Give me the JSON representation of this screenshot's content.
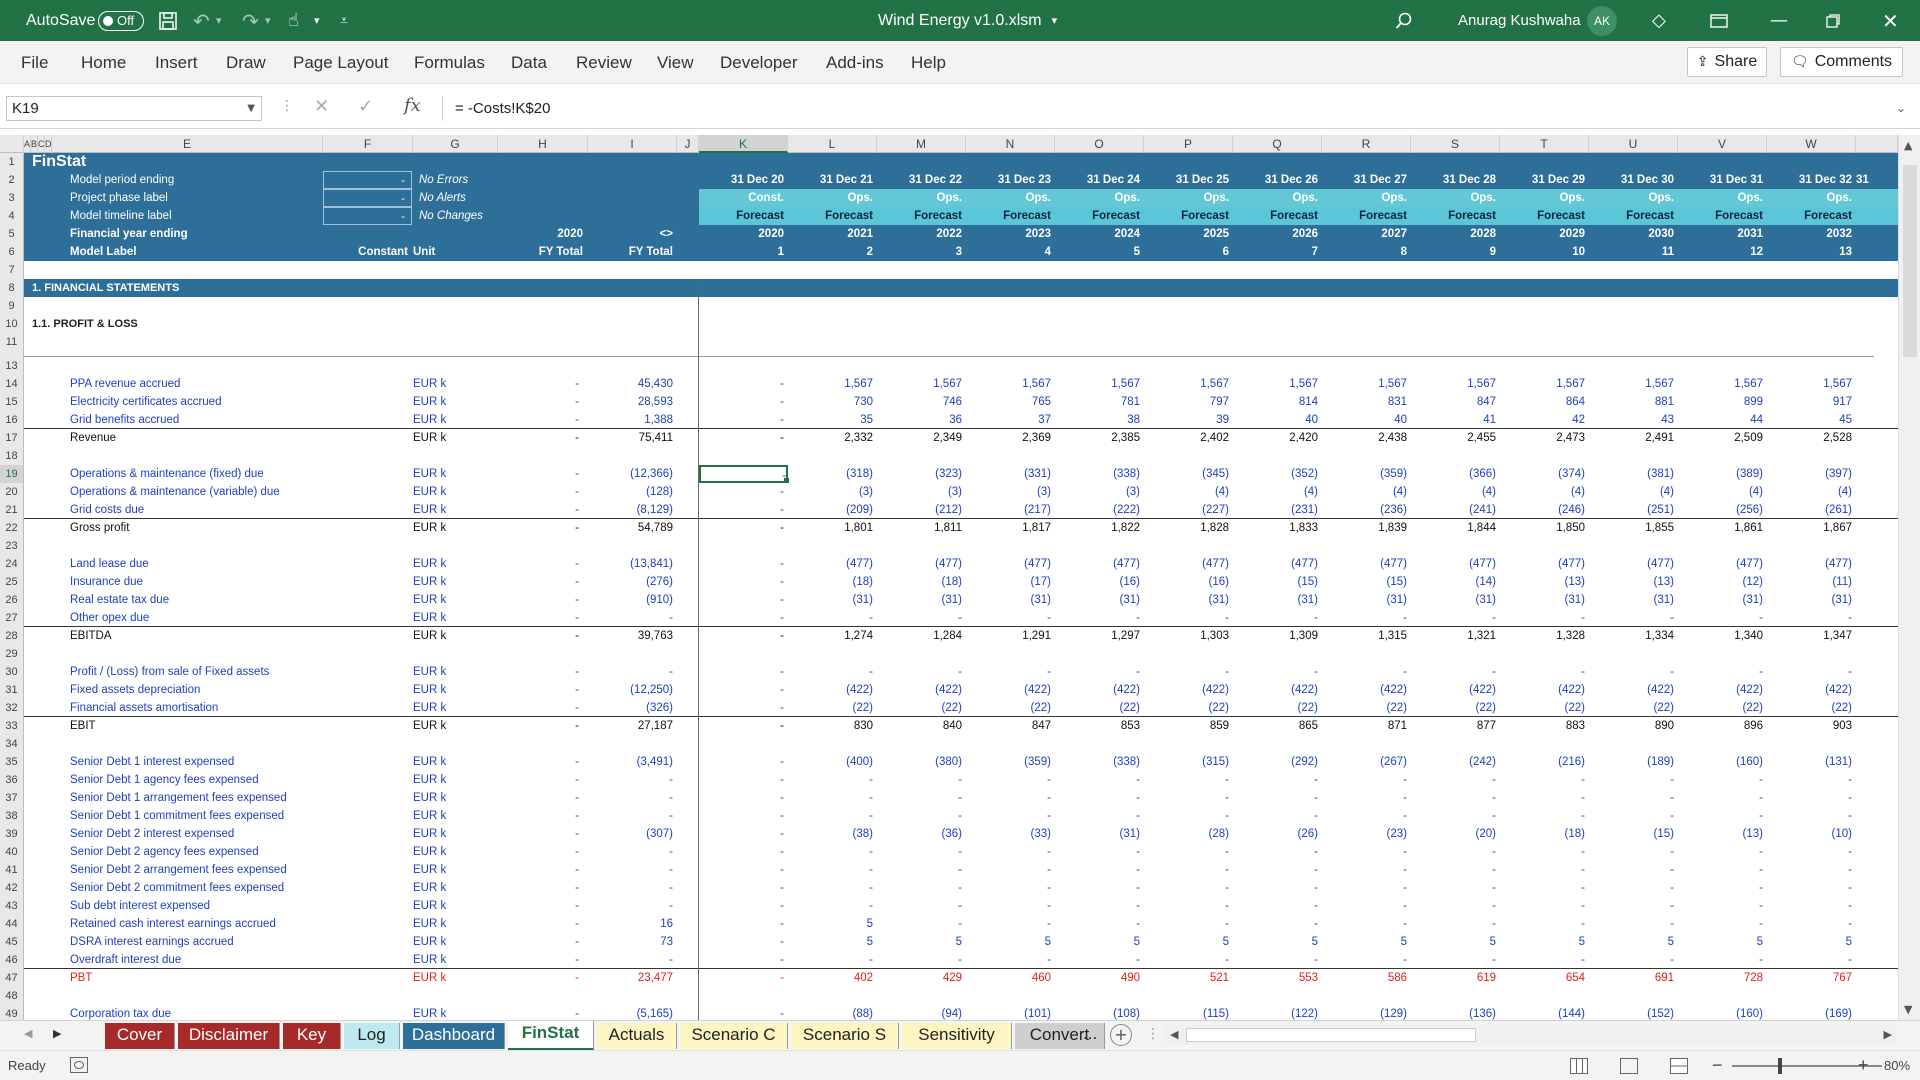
{
  "titlebar": {
    "autosave_label": "AutoSave",
    "autosave_state": "Off",
    "filename": "Wind Energy v1.0.xlsm",
    "user_name": "Anurag Kushwaha",
    "user_initials": "AK"
  },
  "ribbon": {
    "tabs": [
      "File",
      "Home",
      "Insert",
      "Draw",
      "Page Layout",
      "Formulas",
      "Data",
      "Review",
      "View",
      "Developer",
      "Add-ins",
      "Help"
    ],
    "share_label": "Share",
    "comments_label": "Comments"
  },
  "formula_bar": {
    "name_box": "K19",
    "formula": "= -Costs!K$20"
  },
  "columns": [
    "A",
    "B",
    "C",
    "D",
    "E",
    "F",
    "G",
    "H",
    "I",
    "J",
    "K",
    "L",
    "M",
    "N",
    "O",
    "P",
    "Q",
    "R",
    "S",
    "T",
    "U",
    "V",
    "W"
  ],
  "header": {
    "sheet_title": "FinStat",
    "labels": [
      "Model period ending",
      "Project phase label",
      "Model timeline label",
      "Financial year ending",
      "Model Label"
    ],
    "f_values": [
      "-",
      "-",
      "-"
    ],
    "g_values": [
      "No Errors",
      "No Alerts",
      "No Changes"
    ],
    "row5_h": "2020",
    "row5_i": "<>",
    "row6_f": "Constant",
    "row6_g": "Unit",
    "row6_h": "FY Total",
    "row6_i": "FY Total",
    "dates": [
      "31 Dec 20",
      "31 Dec 21",
      "31 Dec 22",
      "31 Dec 23",
      "31 Dec 24",
      "31 Dec 25",
      "31 Dec 26",
      "31 Dec 27",
      "31 Dec 28",
      "31 Dec 29",
      "31 Dec 30",
      "31 Dec 31",
      "31 Dec 32"
    ],
    "phases": [
      "Const.",
      "Ops.",
      "Ops.",
      "Ops.",
      "Ops.",
      "Ops.",
      "Ops.",
      "Ops.",
      "Ops.",
      "Ops.",
      "Ops.",
      "Ops.",
      "Ops."
    ],
    "timeline": [
      "Forecast",
      "Forecast",
      "Forecast",
      "Forecast",
      "Forecast",
      "Forecast",
      "Forecast",
      "Forecast",
      "Forecast",
      "Forecast",
      "Forecast",
      "Forecast",
      "Forecast"
    ],
    "years": [
      "2020",
      "2021",
      "2022",
      "2023",
      "2024",
      "2025",
      "2026",
      "2027",
      "2028",
      "2029",
      "2030",
      "2031",
      "2032"
    ],
    "labels_num": [
      "1",
      "2",
      "3",
      "4",
      "5",
      "6",
      "7",
      "8",
      "9",
      "10",
      "11",
      "12",
      "13"
    ]
  },
  "sections": {
    "s1": "1. FINANCIAL STATEMENTS",
    "s11": "1.1. PROFIT & LOSS"
  },
  "table_rows": [
    {
      "n": "14",
      "label": "PPA revenue accrued",
      "unit": "EUR k",
      "h": "-",
      "i": "45,430",
      "k": "-",
      "vals": [
        "1,567",
        "1,567",
        "1,567",
        "1,567",
        "1,567",
        "1,567",
        "1,567",
        "1,567",
        "1,567",
        "1,567",
        "1,567",
        "1,567"
      ],
      "style": "blue"
    },
    {
      "n": "15",
      "label": "Electricity certificates accrued",
      "unit": "EUR k",
      "h": "-",
      "i": "28,593",
      "k": "-",
      "vals": [
        "730",
        "746",
        "765",
        "781",
        "797",
        "814",
        "831",
        "847",
        "864",
        "881",
        "899",
        "917"
      ],
      "style": "blue"
    },
    {
      "n": "16",
      "label": "Grid benefits accrued",
      "unit": "EUR k",
      "h": "-",
      "i": "1,388",
      "k": "-",
      "vals": [
        "35",
        "36",
        "37",
        "38",
        "39",
        "40",
        "40",
        "41",
        "42",
        "43",
        "44",
        "45"
      ],
      "style": "blue"
    },
    {
      "n": "17",
      "label": "Revenue",
      "unit": "EUR k",
      "h": "-",
      "i": "75,411",
      "k": "-",
      "vals": [
        "2,332",
        "2,349",
        "2,369",
        "2,385",
        "2,402",
        "2,420",
        "2,438",
        "2,455",
        "2,473",
        "2,491",
        "2,509",
        "2,528"
      ],
      "style": "total"
    },
    {
      "n": "19",
      "label": "Operations & maintenance (fixed) due",
      "unit": "EUR k",
      "h": "-",
      "i": "(12,366)",
      "k": "-",
      "vals": [
        "(318)",
        "(323)",
        "(331)",
        "(338)",
        "(345)",
        "(352)",
        "(359)",
        "(366)",
        "(374)",
        "(381)",
        "(389)",
        "(397)"
      ],
      "style": "blue"
    },
    {
      "n": "20",
      "label": "Operations & maintenance (variable) due",
      "unit": "EUR k",
      "h": "-",
      "i": "(128)",
      "k": "-",
      "vals": [
        "(3)",
        "(3)",
        "(3)",
        "(3)",
        "(4)",
        "(4)",
        "(4)",
        "(4)",
        "(4)",
        "(4)",
        "(4)",
        "(4)"
      ],
      "style": "blue"
    },
    {
      "n": "21",
      "label": "Grid costs due",
      "unit": "EUR k",
      "h": "-",
      "i": "(8,129)",
      "k": "-",
      "vals": [
        "(209)",
        "(212)",
        "(217)",
        "(222)",
        "(227)",
        "(231)",
        "(236)",
        "(241)",
        "(246)",
        "(251)",
        "(256)",
        "(261)"
      ],
      "style": "blue"
    },
    {
      "n": "22",
      "label": "Gross profit",
      "unit": "EUR k",
      "h": "-",
      "i": "54,789",
      "k": "-",
      "vals": [
        "1,801",
        "1,811",
        "1,817",
        "1,822",
        "1,828",
        "1,833",
        "1,839",
        "1,844",
        "1,850",
        "1,855",
        "1,861",
        "1,867"
      ],
      "style": "total"
    },
    {
      "n": "24",
      "label": "Land lease due",
      "unit": "EUR k",
      "h": "-",
      "i": "(13,841)",
      "k": "-",
      "vals": [
        "(477)",
        "(477)",
        "(477)",
        "(477)",
        "(477)",
        "(477)",
        "(477)",
        "(477)",
        "(477)",
        "(477)",
        "(477)",
        "(477)"
      ],
      "style": "blue"
    },
    {
      "n": "25",
      "label": "Insurance due",
      "unit": "EUR k",
      "h": "-",
      "i": "(276)",
      "k": "-",
      "vals": [
        "(18)",
        "(18)",
        "(17)",
        "(16)",
        "(16)",
        "(15)",
        "(15)",
        "(14)",
        "(13)",
        "(13)",
        "(12)",
        "(11)"
      ],
      "style": "blue"
    },
    {
      "n": "26",
      "label": "Real estate tax due",
      "unit": "EUR k",
      "h": "-",
      "i": "(910)",
      "k": "-",
      "vals": [
        "(31)",
        "(31)",
        "(31)",
        "(31)",
        "(31)",
        "(31)",
        "(31)",
        "(31)",
        "(31)",
        "(31)",
        "(31)",
        "(31)"
      ],
      "style": "blue"
    },
    {
      "n": "27",
      "label": "Other opex due",
      "unit": "EUR k",
      "h": "-",
      "i": "-",
      "k": "-",
      "vals": [
        "-",
        "-",
        "-",
        "-",
        "-",
        "-",
        "-",
        "-",
        "-",
        "-",
        "-",
        "-"
      ],
      "style": "blue"
    },
    {
      "n": "28",
      "label": "EBITDA",
      "unit": "EUR k",
      "h": "-",
      "i": "39,763",
      "k": "-",
      "vals": [
        "1,274",
        "1,284",
        "1,291",
        "1,297",
        "1,303",
        "1,309",
        "1,315",
        "1,321",
        "1,328",
        "1,334",
        "1,340",
        "1,347"
      ],
      "style": "total"
    },
    {
      "n": "30",
      "label": "Profit / (Loss) from sale of Fixed assets",
      "unit": "EUR k",
      "h": "-",
      "i": "-",
      "k": "-",
      "vals": [
        "-",
        "-",
        "-",
        "-",
        "-",
        "-",
        "-",
        "-",
        "-",
        "-",
        "-",
        "-"
      ],
      "style": "blue"
    },
    {
      "n": "31",
      "label": "Fixed assets depreciation",
      "unit": "EUR k",
      "h": "-",
      "i": "(12,250)",
      "k": "-",
      "vals": [
        "(422)",
        "(422)",
        "(422)",
        "(422)",
        "(422)",
        "(422)",
        "(422)",
        "(422)",
        "(422)",
        "(422)",
        "(422)",
        "(422)"
      ],
      "style": "blue"
    },
    {
      "n": "32",
      "label": "Financial assets amortisation",
      "unit": "EUR k",
      "h": "-",
      "i": "(326)",
      "k": "-",
      "vals": [
        "(22)",
        "(22)",
        "(22)",
        "(22)",
        "(22)",
        "(22)",
        "(22)",
        "(22)",
        "(22)",
        "(22)",
        "(22)",
        "(22)"
      ],
      "style": "blue"
    },
    {
      "n": "33",
      "label": "EBIT",
      "unit": "EUR k",
      "h": "-",
      "i": "27,187",
      "k": "-",
      "vals": [
        "830",
        "840",
        "847",
        "853",
        "859",
        "865",
        "871",
        "877",
        "883",
        "890",
        "896",
        "903"
      ],
      "style": "total"
    },
    {
      "n": "35",
      "label": "Senior Debt 1 interest expensed",
      "unit": "EUR k",
      "h": "-",
      "i": "(3,491)",
      "k": "-",
      "vals": [
        "(400)",
        "(380)",
        "(359)",
        "(338)",
        "(315)",
        "(292)",
        "(267)",
        "(242)",
        "(216)",
        "(189)",
        "(160)",
        "(131)"
      ],
      "style": "blue"
    },
    {
      "n": "36",
      "label": "Senior Debt 1 agency fees expensed",
      "unit": "EUR k",
      "h": "-",
      "i": "-",
      "k": "-",
      "vals": [
        "-",
        "-",
        "-",
        "-",
        "-",
        "-",
        "-",
        "-",
        "-",
        "-",
        "-",
        "-"
      ],
      "style": "blue"
    },
    {
      "n": "37",
      "label": "Senior Debt 1 arrangement fees expensed",
      "unit": "EUR k",
      "h": "-",
      "i": "-",
      "k": "-",
      "vals": [
        "-",
        "-",
        "-",
        "-",
        "-",
        "-",
        "-",
        "-",
        "-",
        "-",
        "-",
        "-"
      ],
      "style": "blue"
    },
    {
      "n": "38",
      "label": "Senior Debt 1 commitment fees expensed",
      "unit": "EUR k",
      "h": "-",
      "i": "-",
      "k": "-",
      "vals": [
        "-",
        "-",
        "-",
        "-",
        "-",
        "-",
        "-",
        "-",
        "-",
        "-",
        "-",
        "-"
      ],
      "style": "blue"
    },
    {
      "n": "39",
      "label": "Senior Debt 2 interest expensed",
      "unit": "EUR k",
      "h": "-",
      "i": "(307)",
      "k": "-",
      "vals": [
        "(38)",
        "(36)",
        "(33)",
        "(31)",
        "(28)",
        "(26)",
        "(23)",
        "(20)",
        "(18)",
        "(15)",
        "(13)",
        "(10)"
      ],
      "style": "blue"
    },
    {
      "n": "40",
      "label": "Senior Debt 2 agency fees expensed",
      "unit": "EUR k",
      "h": "-",
      "i": "-",
      "k": "-",
      "vals": [
        "-",
        "-",
        "-",
        "-",
        "-",
        "-",
        "-",
        "-",
        "-",
        "-",
        "-",
        "-"
      ],
      "style": "blue"
    },
    {
      "n": "41",
      "label": "Senior Debt 2 arrangement fees expensed",
      "unit": "EUR k",
      "h": "-",
      "i": "-",
      "k": "-",
      "vals": [
        "-",
        "-",
        "-",
        "-",
        "-",
        "-",
        "-",
        "-",
        "-",
        "-",
        "-",
        "-"
      ],
      "style": "blue"
    },
    {
      "n": "42",
      "label": "Senior Debt 2 commitment fees expensed",
      "unit": "EUR k",
      "h": "-",
      "i": "-",
      "k": "-",
      "vals": [
        "-",
        "-",
        "-",
        "-",
        "-",
        "-",
        "-",
        "-",
        "-",
        "-",
        "-",
        "-"
      ],
      "style": "blue"
    },
    {
      "n": "43",
      "label": "Sub debt interest expensed",
      "unit": "EUR k",
      "h": "-",
      "i": "-",
      "k": "-",
      "vals": [
        "-",
        "-",
        "-",
        "-",
        "-",
        "-",
        "-",
        "-",
        "-",
        "-",
        "-",
        "-"
      ],
      "style": "blue"
    },
    {
      "n": "44",
      "label": "Retained cash interest earnings accrued",
      "unit": "EUR k",
      "h": "-",
      "i": "16",
      "k": "-",
      "vals": [
        "5",
        "-",
        "-",
        "-",
        "-",
        "-",
        "-",
        "-",
        "-",
        "-",
        "-",
        "-"
      ],
      "style": "blue"
    },
    {
      "n": "45",
      "label": "DSRA interest earnings accrued",
      "unit": "EUR k",
      "h": "-",
      "i": "73",
      "k": "-",
      "vals": [
        "5",
        "5",
        "5",
        "5",
        "5",
        "5",
        "5",
        "5",
        "5",
        "5",
        "5",
        "5"
      ],
      "style": "blue"
    },
    {
      "n": "46",
      "label": "Overdraft interest due",
      "unit": "EUR k",
      "h": "-",
      "i": "-",
      "k": "-",
      "vals": [
        "-",
        "-",
        "-",
        "-",
        "-",
        "-",
        "-",
        "-",
        "-",
        "-",
        "-",
        "-"
      ],
      "style": "blue"
    },
    {
      "n": "47",
      "label": "PBT",
      "unit": "EUR k",
      "h": "-",
      "i": "23,477",
      "k": "-",
      "vals": [
        "402",
        "429",
        "460",
        "490",
        "521",
        "553",
        "586",
        "619",
        "654",
        "691",
        "728",
        "767"
      ],
      "style": "red"
    },
    {
      "n": "49",
      "label": "Corporation tax due",
      "unit": "EUR k",
      "h": "-",
      "i": "(5,165)",
      "k": "-",
      "vals": [
        "(88)",
        "(94)",
        "(101)",
        "(108)",
        "(115)",
        "(122)",
        "(129)",
        "(136)",
        "(144)",
        "(152)",
        "(160)",
        "(169)"
      ],
      "style": "blue"
    }
  ],
  "empty_rows": [
    "7",
    "9",
    "11",
    "13",
    "18",
    "23",
    "29",
    "34",
    "48"
  ],
  "sheet_tabs": [
    {
      "label": "Cover",
      "color": "#a52a2a",
      "text": "#fff"
    },
    {
      "label": "Disclaimer",
      "color": "#a52a2a",
      "text": "#fff"
    },
    {
      "label": "Key",
      "color": "#a52a2a",
      "text": "#fff"
    },
    {
      "label": "Log",
      "color": "#bfe9f0",
      "text": "#222"
    },
    {
      "label": "Dashboard",
      "color": "#2e6f99",
      "text": "#fff"
    },
    {
      "label": "FinStat",
      "color": "#ffffff",
      "text": "#217346"
    },
    {
      "label": "Actuals",
      "color": "#fdf6c2",
      "text": "#222"
    },
    {
      "label": "Scenario C",
      "color": "#fdf6c2",
      "text": "#222"
    },
    {
      "label": "Scenario S",
      "color": "#fdf6c2",
      "text": "#222"
    },
    {
      "label": "Sensitivity",
      "color": "#fdf6c2",
      "text": "#222"
    },
    {
      "label": "Convert",
      "color": "#cfcfcf",
      "text": "#222"
    }
  ],
  "more_tabs": "...",
  "status": {
    "ready": "Ready",
    "zoom": "80%"
  },
  "colors": {
    "excel_green": "#217346",
    "header_blue": "#2e6f99",
    "forecast_cyan": "#5bc6d8",
    "label_blue": "#1f3fbf",
    "pbt_red": "#e0201b"
  }
}
